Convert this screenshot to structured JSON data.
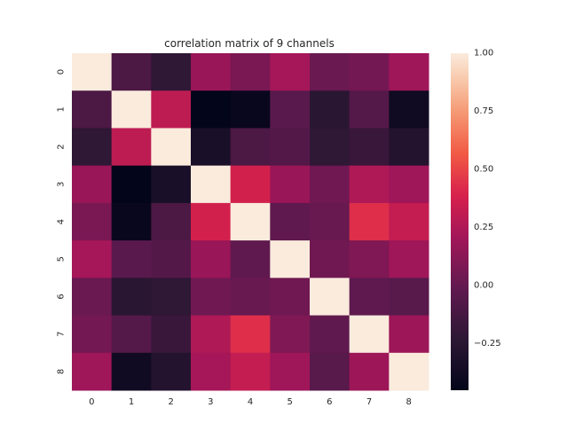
{
  "chart_data": {
    "type": "heatmap",
    "title": "correlation matrix of 9 channels",
    "xlabel": "",
    "ylabel": "",
    "x_categories": [
      "0",
      "1",
      "2",
      "3",
      "4",
      "5",
      "6",
      "7",
      "8"
    ],
    "y_categories": [
      "0",
      "1",
      "2",
      "3",
      "4",
      "5",
      "6",
      "7",
      "8"
    ],
    "values": [
      [
        1.0,
        -0.1,
        -0.22,
        0.18,
        0.07,
        0.22,
        0.02,
        0.05,
        0.2
      ],
      [
        -0.1,
        1.0,
        0.3,
        -0.45,
        -0.42,
        -0.04,
        -0.25,
        -0.06,
        -0.38
      ],
      [
        -0.22,
        0.3,
        1.0,
        -0.33,
        -0.1,
        -0.07,
        -0.22,
        -0.18,
        -0.28
      ],
      [
        0.18,
        -0.45,
        -0.33,
        1.0,
        0.37,
        0.18,
        0.04,
        0.25,
        0.2
      ],
      [
        0.07,
        -0.42,
        -0.1,
        0.37,
        1.0,
        -0.02,
        0.01,
        0.43,
        0.32
      ],
      [
        0.22,
        -0.04,
        -0.07,
        0.18,
        -0.02,
        1.0,
        0.04,
        0.09,
        0.2
      ],
      [
        0.02,
        -0.25,
        -0.22,
        0.04,
        0.01,
        0.04,
        1.0,
        -0.02,
        -0.05
      ],
      [
        0.05,
        -0.06,
        -0.18,
        0.25,
        0.43,
        0.09,
        -0.02,
        1.0,
        0.19
      ],
      [
        0.2,
        -0.38,
        -0.28,
        0.22,
        0.32,
        0.2,
        -0.05,
        0.19,
        1.0
      ]
    ],
    "colorbar": {
      "vmin": -0.45,
      "vmax": 1.0,
      "ticks": [
        1.0,
        0.75,
        0.5,
        0.25,
        0.0,
        -0.25
      ],
      "tick_labels": [
        "1.00",
        "0.75",
        "0.50",
        "0.25",
        "0.00",
        "−0.25"
      ]
    },
    "colormap": "rocket",
    "grid": false,
    "legend": "colorbar-right"
  }
}
